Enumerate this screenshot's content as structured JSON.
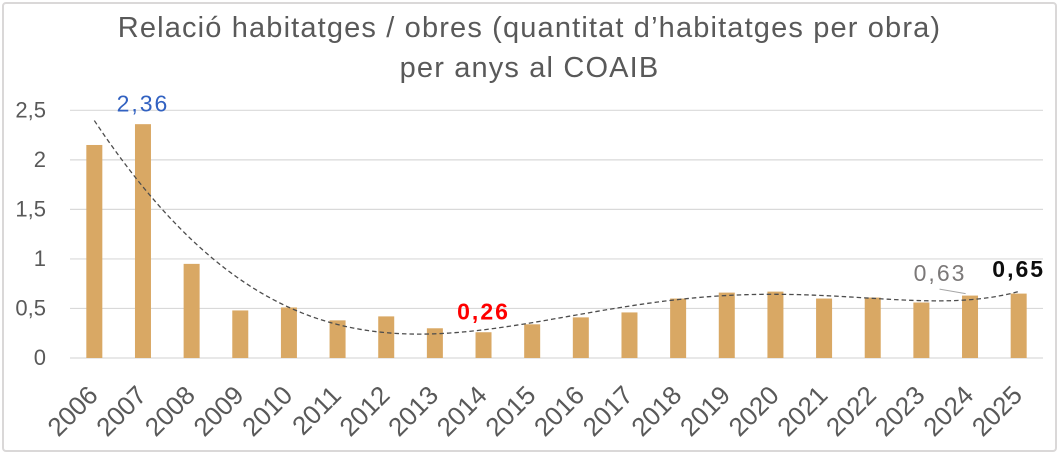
{
  "chart_data": {
    "type": "bar",
    "title_line1": "Relació habitatges / obres (quantitat d’habitatges per obra)",
    "title_line2": "per anys al COAIB",
    "categories": [
      "2006",
      "2007",
      "2008",
      "2009",
      "2010",
      "2011",
      "2012",
      "2013",
      "2014",
      "2015",
      "2016",
      "2017",
      "2018",
      "2019",
      "2020",
      "2021",
      "2022",
      "2023",
      "2024",
      "2025"
    ],
    "values": [
      2.15,
      2.36,
      0.95,
      0.48,
      0.51,
      0.38,
      0.42,
      0.3,
      0.26,
      0.34,
      0.41,
      0.46,
      0.6,
      0.66,
      0.67,
      0.6,
      0.61,
      0.56,
      0.63,
      0.65
    ],
    "ylim": [
      0,
      2.5
    ],
    "y_tick_step": 0.5,
    "y_tick_labels": [
      "0",
      "0,5",
      "1",
      "1,5",
      "2",
      "2,5"
    ],
    "grid": true,
    "legend": "none",
    "decimal_separator": ",",
    "colors": {
      "bar": "#d9a864",
      "gridline": "#d9d9d9",
      "axis_text": "#595959",
      "title_text": "#595959",
      "frame_border": "#d6d4d4",
      "background": "#ffffff",
      "leader_line": "#a6a6a6"
    },
    "trendline": {
      "type": "polynomial",
      "order": 5,
      "style": "dashed",
      "color": "#4d4d4d"
    },
    "point_labels": [
      {
        "category": "2007",
        "text": "2,36",
        "color": "#3161c1",
        "bold": false,
        "dx": 0,
        "dy": 0,
        "leader": false
      },
      {
        "category": "2014",
        "text": "0,26",
        "color": "#fe0000",
        "bold": true,
        "dx": 0,
        "dy": 0,
        "leader": false
      },
      {
        "category": "2024",
        "text": "0,63",
        "color": "#7b7878",
        "bold": false,
        "dx": -30,
        "dy": -2.2,
        "leader": true
      },
      {
        "category": "2025",
        "text": "0,65",
        "color": "#0d0d0d",
        "bold": true,
        "dx": 0,
        "dy": -4.1,
        "leader": false
      }
    ]
  }
}
